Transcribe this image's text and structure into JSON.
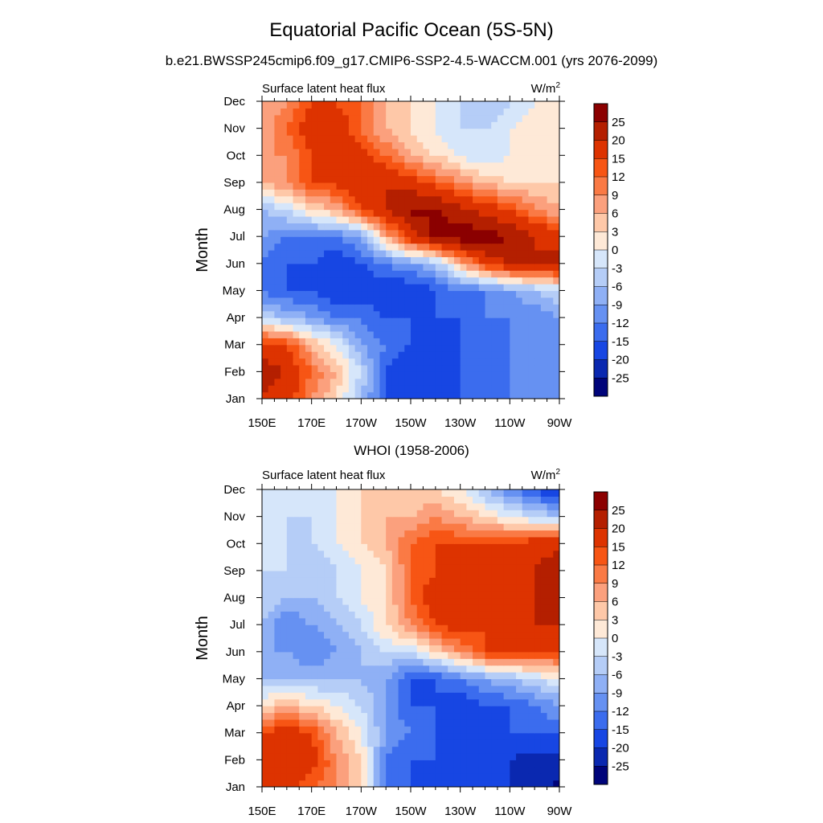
{
  "figure": {
    "title": "Equatorial Pacific Ocean (5S-5N)",
    "panel_1_title": "b.e21.BWSSP245cmip6.f09_g17.CMIP6-SSP2-4.5-WACCM.001 (yrs 2076-2099)",
    "panel_2_title": "WHOI (1958-2006)"
  },
  "colorbar": {
    "boundaries": [
      "25",
      "20",
      "15",
      "12",
      "9",
      "6",
      "3",
      "0",
      "-3",
      "-6",
      "-9",
      "-12",
      "-15",
      "-20",
      "-25"
    ],
    "levels": [
      30,
      25,
      20,
      15,
      12,
      9,
      6,
      3,
      0,
      -3,
      -6,
      -9,
      -12,
      -15,
      -20,
      -25,
      -30
    ],
    "colors": [
      "#8b0000",
      "#b41f00",
      "#dd3300",
      "#f75514",
      "#fa7a45",
      "#fba07d",
      "#fec8a8",
      "#fee9d7",
      "#d6e6fa",
      "#b5cdf7",
      "#8fb0f5",
      "#6691f2",
      "#3b6cee",
      "#1746e3",
      "#0a28b0",
      "#00047a"
    ]
  },
  "chart_data": [
    {
      "type": "heatmap",
      "title": "b.e21.BWSSP245cmip6.f09_g17.CMIP6-SSP2-4.5-WACCM.001 (yrs 2076-2099)",
      "left_label": "Surface latent heat flux",
      "units_base": "W/m",
      "units_exp": "2",
      "ylabel": "Month",
      "xlabel": "",
      "x_ticks": [
        "150E",
        "170E",
        "170W",
        "150W",
        "130W",
        "110W",
        "90W"
      ],
      "y_ticks": [
        "Jan",
        "Feb",
        "Mar",
        "Apr",
        "May",
        "Jun",
        "Jul",
        "Aug",
        "Sep",
        "Oct",
        "Nov",
        "Dec"
      ],
      "longitudes": [
        150,
        160,
        170,
        180,
        190,
        200,
        210,
        220,
        230,
        240,
        250,
        260,
        270
      ],
      "months": [
        "Jan",
        "Feb",
        "Mar",
        "Apr",
        "May",
        "Jun",
        "Jul",
        "Aug",
        "Sep",
        "Oct",
        "Nov",
        "Dec"
      ],
      "values": [
        [
          20,
          18,
          9,
          3,
          -6,
          -15,
          -20,
          -18,
          -15,
          -12,
          -12,
          -12,
          -9
        ],
        [
          22,
          20,
          12,
          6,
          -3,
          -15,
          -20,
          -18,
          -15,
          -12,
          -12,
          -9,
          -9
        ],
        [
          18,
          15,
          6,
          0,
          -9,
          -12,
          -15,
          -15,
          -15,
          -12,
          -12,
          -9,
          -9
        ],
        [
          -3,
          -6,
          -9,
          -12,
          -12,
          -15,
          -15,
          -15,
          -15,
          -12,
          -12,
          -12,
          -9
        ],
        [
          -12,
          -15,
          -15,
          -18,
          -18,
          -18,
          -18,
          -15,
          -12,
          -12,
          -9,
          -6,
          -3
        ],
        [
          -12,
          -15,
          -15,
          -18,
          -15,
          -12,
          -9,
          -6,
          6,
          15,
          20,
          20,
          22
        ],
        [
          -9,
          -12,
          -12,
          -12,
          -9,
          6,
          18,
          26,
          28,
          28,
          25,
          20,
          18
        ],
        [
          -6,
          -3,
          3,
          6,
          15,
          20,
          26,
          26,
          22,
          18,
          15,
          10,
          6
        ],
        [
          6,
          9,
          15,
          16,
          20,
          20,
          18,
          13,
          9,
          6,
          3,
          3,
          3
        ],
        [
          9,
          9,
          15,
          18,
          18,
          12,
          6,
          3,
          0,
          -3,
          0,
          3,
          3
        ],
        [
          6,
          12,
          18,
          18,
          12,
          6,
          3,
          0,
          -3,
          -3,
          0,
          3,
          3
        ],
        [
          6,
          9,
          15,
          15,
          12,
          6,
          3,
          0,
          -3,
          -6,
          -3,
          0,
          0
        ]
      ]
    },
    {
      "type": "heatmap",
      "title": "WHOI (1958-2006)",
      "left_label": "Surface latent heat flux",
      "units_base": "W/m",
      "units_exp": "2",
      "ylabel": "Month",
      "xlabel": "",
      "x_ticks": [
        "150E",
        "170E",
        "170W",
        "150W",
        "130W",
        "110W",
        "90W"
      ],
      "y_ticks": [
        "Jan",
        "Feb",
        "Mar",
        "Apr",
        "May",
        "Jun",
        "Jul",
        "Aug",
        "Sep",
        "Oct",
        "Nov",
        "Dec"
      ],
      "longitudes": [
        150,
        160,
        170,
        180,
        190,
        200,
        210,
        220,
        230,
        240,
        250,
        260,
        270
      ],
      "months": [
        "Jan",
        "Feb",
        "Mar",
        "Apr",
        "May",
        "Jun",
        "Jul",
        "Aug",
        "Sep",
        "Oct",
        "Nov",
        "Dec"
      ],
      "values": [
        [
          15,
          18,
          12,
          9,
          3,
          -12,
          -15,
          -18,
          -20,
          -20,
          -20,
          -22,
          -26
        ],
        [
          18,
          20,
          18,
          9,
          3,
          -12,
          -15,
          -15,
          -18,
          -18,
          -20,
          -22,
          -22
        ],
        [
          15,
          18,
          15,
          6,
          0,
          -9,
          -12,
          -15,
          -15,
          -15,
          -15,
          -15,
          -15
        ],
        [
          3,
          6,
          3,
          0,
          -3,
          -9,
          -15,
          -15,
          -18,
          -15,
          -15,
          -12,
          -9
        ],
        [
          -6,
          -6,
          -6,
          -6,
          -6,
          -9,
          -15,
          -15,
          -12,
          -9,
          -6,
          -3,
          0
        ],
        [
          -9,
          -9,
          -12,
          -9,
          -6,
          -3,
          -3,
          3,
          9,
          15,
          15,
          15,
          15
        ],
        [
          -6,
          -12,
          -9,
          -6,
          -3,
          3,
          9,
          15,
          18,
          15,
          18,
          20,
          20
        ],
        [
          -3,
          -6,
          -6,
          -3,
          0,
          3,
          12,
          18,
          20,
          15,
          18,
          20,
          22
        ],
        [
          -3,
          -3,
          -6,
          -3,
          0,
          3,
          12,
          15,
          18,
          15,
          18,
          20,
          25
        ],
        [
          0,
          -3,
          -3,
          0,
          3,
          6,
          12,
          15,
          15,
          15,
          15,
          18,
          18
        ],
        [
          0,
          -3,
          -3,
          0,
          3,
          6,
          6,
          9,
          6,
          3,
          0,
          -3,
          -6
        ],
        [
          0,
          0,
          0,
          0,
          3,
          3,
          3,
          3,
          0,
          -6,
          -12,
          -15,
          -20
        ]
      ]
    }
  ]
}
